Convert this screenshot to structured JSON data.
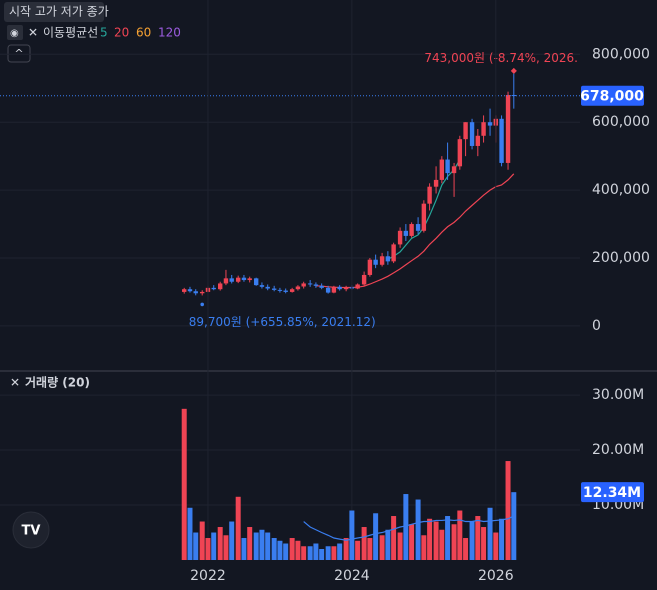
{
  "header": {
    "ohlc_label": "시작 고가 저가 종가",
    "ma_label": "이동평균선"
  },
  "chart_data": [
    {
      "type": "candlestick",
      "x": [
        2021.67,
        2021.75,
        2021.83,
        2021.92,
        2022,
        2022.08,
        2022.17,
        2022.25,
        2022.33,
        2022.42,
        2022.5,
        2022.58,
        2022.67,
        2022.75,
        2022.83,
        2022.92,
        2023,
        2023.08,
        2023.17,
        2023.25,
        2023.33,
        2023.42,
        2023.5,
        2023.58,
        2023.67,
        2023.75,
        2023.83,
        2023.92,
        2024,
        2024.08,
        2024.17,
        2024.25,
        2024.33,
        2024.42,
        2024.5,
        2024.58,
        2024.67,
        2024.75,
        2024.83,
        2024.92,
        2025,
        2025.08,
        2025.17,
        2025.25,
        2025.33,
        2025.42,
        2025.5,
        2025.58,
        2025.67,
        2025.75,
        2025.83,
        2025.92,
        2026,
        2026.08,
        2026.17,
        2026.25
      ],
      "open": [
        100000,
        108000,
        102000,
        96000,
        100000,
        112000,
        108000,
        125000,
        140000,
        130000,
        142000,
        135000,
        140000,
        120000,
        115000,
        110000,
        106000,
        104000,
        100000,
        108000,
        116000,
        125000,
        122000,
        118000,
        112000,
        98000,
        115000,
        108000,
        114000,
        110000,
        122000,
        150000,
        195000,
        180000,
        205000,
        190000,
        240000,
        280000,
        265000,
        300000,
        280000,
        360000,
        410000,
        430000,
        490000,
        450000,
        470000,
        550000,
        600000,
        530000,
        560000,
        600000,
        590000,
        610000,
        480000,
        680000
      ],
      "high": [
        112000,
        115000,
        108000,
        105000,
        118000,
        120000,
        130000,
        165000,
        150000,
        148000,
        150000,
        145000,
        142000,
        128000,
        122000,
        118000,
        112000,
        110000,
        112000,
        120000,
        130000,
        135000,
        128000,
        125000,
        118000,
        118000,
        120000,
        118000,
        120000,
        125000,
        160000,
        200000,
        210000,
        215000,
        220000,
        245000,
        290000,
        300000,
        305000,
        320000,
        370000,
        420000,
        470000,
        500000,
        540000,
        480000,
        560000,
        600000,
        610000,
        580000,
        620000,
        640000,
        620000,
        620000,
        690000,
        743000
      ],
      "low": [
        95000,
        98000,
        90000,
        89700,
        97000,
        105000,
        104000,
        120000,
        125000,
        126000,
        130000,
        128000,
        118000,
        110000,
        105000,
        102000,
        98000,
        96000,
        98000,
        104000,
        110000,
        115000,
        112000,
        108000,
        95000,
        96000,
        104000,
        102000,
        106000,
        108000,
        118000,
        145000,
        170000,
        175000,
        180000,
        185000,
        230000,
        250000,
        260000,
        270000,
        275000,
        340000,
        390000,
        420000,
        430000,
        380000,
        460000,
        500000,
        520000,
        500000,
        540000,
        560000,
        540000,
        470000,
        460000,
        640000
      ],
      "close": [
        108000,
        102000,
        96000,
        100000,
        112000,
        108000,
        125000,
        140000,
        130000,
        142000,
        135000,
        140000,
        120000,
        115000,
        110000,
        106000,
        104000,
        100000,
        108000,
        116000,
        125000,
        122000,
        118000,
        112000,
        98000,
        115000,
        108000,
        114000,
        110000,
        122000,
        150000,
        195000,
        180000,
        205000,
        190000,
        240000,
        280000,
        265000,
        300000,
        280000,
        360000,
        410000,
        430000,
        490000,
        450000,
        470000,
        550000,
        600000,
        530000,
        560000,
        600000,
        590000,
        610000,
        480000,
        680000,
        678000
      ],
      "up_color": "#ef4454",
      "down_color": "#3a7ef0",
      "xlim": [
        2019.11,
        2027.17
      ],
      "ylim": [
        -130000,
        960000
      ],
      "yticks": [
        0,
        {
          "value": 200000,
          "label": "200,000"
        },
        {
          "value": 400000,
          "label": "400,000"
        },
        {
          "value": 600000,
          "label": "600,000"
        },
        {
          "value": 800000,
          "label": "800,000"
        }
      ],
      "grid": true,
      "ma": [
        {
          "name": "5",
          "color": "#26a69a",
          "values": [
            null,
            null,
            null,
            null,
            null,
            null,
            null,
            null,
            null,
            null,
            null,
            null,
            null,
            null,
            null,
            null,
            null,
            null,
            null,
            null,
            null,
            null,
            null,
            null,
            null,
            null,
            null,
            null,
            null,
            null,
            null,
            null,
            null,
            null,
            196000,
            205000,
            218000,
            238000,
            258000,
            268000,
            290000,
            325000,
            370000,
            415000,
            440000,
            460000,
            490000,
            null,
            null,
            null,
            null,
            null,
            null,
            null,
            null,
            null
          ]
        },
        {
          "name": "20",
          "color": "#ef4454",
          "values": [
            null,
            null,
            null,
            null,
            null,
            null,
            null,
            null,
            null,
            null,
            null,
            null,
            null,
            null,
            null,
            null,
            null,
            null,
            null,
            null,
            null,
            null,
            118000,
            117000,
            115000,
            114000,
            113000,
            113000,
            113000,
            114000,
            117000,
            123000,
            130000,
            138000,
            146000,
            156000,
            168000,
            180000,
            192000,
            205000,
            220000,
            240000,
            258000,
            276000,
            292000,
            305000,
            320000,
            338000,
            355000,
            370000,
            385000,
            400000,
            410000,
            415000,
            430000,
            448000
          ]
        },
        {
          "name": "60",
          "color": "#f7a233"
        },
        {
          "name": "120",
          "color": "#9c5ce0"
        }
      ],
      "annotations": [
        {
          "text": "743,000원 (-8.74%, 2026.",
          "value": 743000,
          "color": "#ef4454"
        },
        {
          "text": "89,700원 (+655.85%, 2021.12)",
          "value": 89700,
          "color": "#3a7ef0"
        }
      ],
      "current": {
        "value": 678000,
        "label": "678,000"
      }
    },
    {
      "type": "bar",
      "title": "거래량 (20)",
      "x": [
        2021.67,
        2021.75,
        2021.83,
        2021.92,
        2022,
        2022.08,
        2022.17,
        2022.25,
        2022.33,
        2022.42,
        2022.5,
        2022.58,
        2022.67,
        2022.75,
        2022.83,
        2022.92,
        2023,
        2023.08,
        2023.17,
        2023.25,
        2023.33,
        2023.42,
        2023.5,
        2023.58,
        2023.67,
        2023.75,
        2023.83,
        2023.92,
        2024,
        2024.08,
        2024.17,
        2024.25,
        2024.33,
        2024.42,
        2024.5,
        2024.58,
        2024.67,
        2024.75,
        2024.83,
        2024.92,
        2025,
        2025.08,
        2025.17,
        2025.25,
        2025.33,
        2025.42,
        2025.5,
        2025.58,
        2025.67,
        2025.75,
        2025.83,
        2025.92,
        2026,
        2026.08,
        2026.17,
        2026.25
      ],
      "values": [
        27500000,
        9500000,
        5000000,
        7000000,
        4000000,
        5000000,
        6000000,
        4500000,
        7000000,
        11500000,
        4000000,
        6000000,
        5000000,
        5500000,
        5000000,
        4000000,
        3500000,
        3000000,
        4000000,
        3500000,
        2500000,
        2500000,
        3000000,
        2000000,
        2500000,
        2500000,
        3000000,
        4000000,
        9000000,
        3500000,
        6000000,
        4000000,
        8500000,
        4500000,
        5500000,
        8000000,
        5000000,
        12000000,
        6500000,
        11000000,
        4500000,
        7500000,
        7000000,
        5500000,
        8000000,
        6500000,
        9000000,
        4000000,
        7000000,
        8000000,
        6000000,
        9500000,
        5000000,
        7500000,
        18000000,
        12340000
      ],
      "ma_color": "#3a7ef0",
      "ma_values": [
        null,
        null,
        null,
        null,
        null,
        null,
        null,
        null,
        null,
        null,
        null,
        null,
        null,
        null,
        null,
        null,
        null,
        null,
        null,
        null,
        7000000,
        6000000,
        5500000,
        5000000,
        4500000,
        4000000,
        3800000,
        3600000,
        3800000,
        4000000,
        4200000,
        4500000,
        4800000,
        5000000,
        5300000,
        5600000,
        6000000,
        6200000,
        6500000,
        6800000,
        7000000,
        7000000,
        7200000,
        7200000,
        7300000,
        7200000,
        7300000,
        7000000,
        7000000,
        7200000,
        7000000,
        7100000,
        7200000,
        7300000,
        7500000,
        8000000
      ],
      "xlim": [
        2019.11,
        2027.17
      ],
      "xticks": [
        2022,
        2024,
        2026
      ],
      "ylim": [
        0,
        34200000
      ],
      "yticks": [
        {
          "value": 10000000,
          "label": "10.00M"
        },
        {
          "value": 20000000,
          "label": "20.00M"
        },
        {
          "value": 30000000,
          "label": "30.00M"
        }
      ],
      "current": {
        "value": 12340000,
        "label": "12.34M"
      }
    }
  ]
}
